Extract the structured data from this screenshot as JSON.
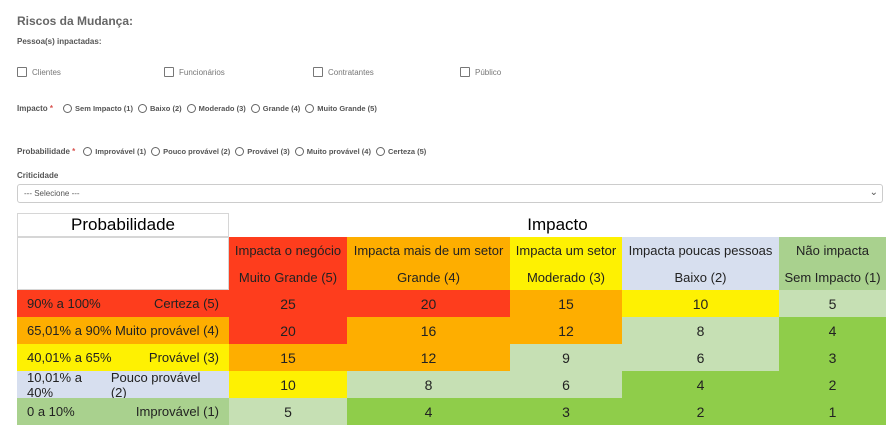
{
  "section_title": "Riscos da Mudança:",
  "people_label": "Pessoa(s) inpactadas:",
  "people_options": [
    "Clientes",
    "Funcionários",
    "Contratantes",
    "Público"
  ],
  "impact_label": "Impacto",
  "impact_options": [
    "Sem Impacto (1)",
    "Baixo (2)",
    "Moderado (3)",
    "Grande (4)",
    "Muito Grande (5)"
  ],
  "probability_label": "Probabilidade",
  "probability_options": [
    "Improvável (1)",
    "Pouco provável (2)",
    "Provável (3)",
    "Muito provável (4)",
    "Certeza (5)"
  ],
  "required_mark": "*",
  "criticality_label": "Criticidade",
  "criticality_select": "--- Selecione ---",
  "matrix": {
    "prob_title": "Probabilidade",
    "impact_title": "Impacto",
    "columns": [
      {
        "desc": "Impacta o negócio",
        "level": "Muito Grande (5)"
      },
      {
        "desc": "Impacta mais de um setor",
        "level": "Grande (4)"
      },
      {
        "desc": "Impacta um setor",
        "level": "Moderado (3)"
      },
      {
        "desc": "Impacta poucas pessoas",
        "level": "Baixo (2)"
      },
      {
        "desc": "Não impacta",
        "level": "Sem Impacto (1)"
      }
    ],
    "rows": [
      {
        "range": "90% a 100%",
        "label": "Certeza (5)",
        "values": [
          "25",
          "20",
          "15",
          "10",
          "5"
        ]
      },
      {
        "range": "65,01% a 90%",
        "label": "Muito provável (4)",
        "values": [
          "20",
          "16",
          "12",
          "8",
          "4"
        ]
      },
      {
        "range": "40,01% a 65%",
        "label": "Provável (3)",
        "values": [
          "15",
          "12",
          "9",
          "6",
          "3"
        ]
      },
      {
        "range": "10,01% a 40%",
        "label": "Pouco provável (2)",
        "values": [
          "10",
          "8",
          "6",
          "4",
          "2"
        ]
      },
      {
        "range": "0 a 10%",
        "label": "Improvável (1)",
        "values": [
          "5",
          "4",
          "3",
          "2",
          "1"
        ]
      }
    ],
    "colors": {
      "red": "#fe3d1d",
      "orange": "#feae00",
      "yellow": "#fef102",
      "lightgreen": "#c6e0b4",
      "green": "#8fcd4a",
      "lavender": "#d7dfef",
      "sage": "#a9d18e"
    },
    "header_colors": [
      "#fe3d1d",
      "#feae00",
      "#fef102",
      "#d7dfef",
      "#a9d18e"
    ],
    "row_label_colors": [
      "#fe3d1d",
      "#feae00",
      "#fef102",
      "#d7dfef",
      "#a9d18e"
    ],
    "cell_colors": [
      [
        "#fe3d1d",
        "#fe3d1d",
        "#feae00",
        "#fef102",
        "#c6e0b4"
      ],
      [
        "#fe3d1d",
        "#feae00",
        "#feae00",
        "#c6e0b4",
        "#8fcd4a"
      ],
      [
        "#feae00",
        "#feae00",
        "#c6e0b4",
        "#c6e0b4",
        "#8fcd4a"
      ],
      [
        "#fef102",
        "#c6e0b4",
        "#c6e0b4",
        "#8fcd4a",
        "#8fcd4a"
      ],
      [
        "#c6e0b4",
        "#8fcd4a",
        "#8fcd4a",
        "#8fcd4a",
        "#8fcd4a"
      ]
    ]
  }
}
